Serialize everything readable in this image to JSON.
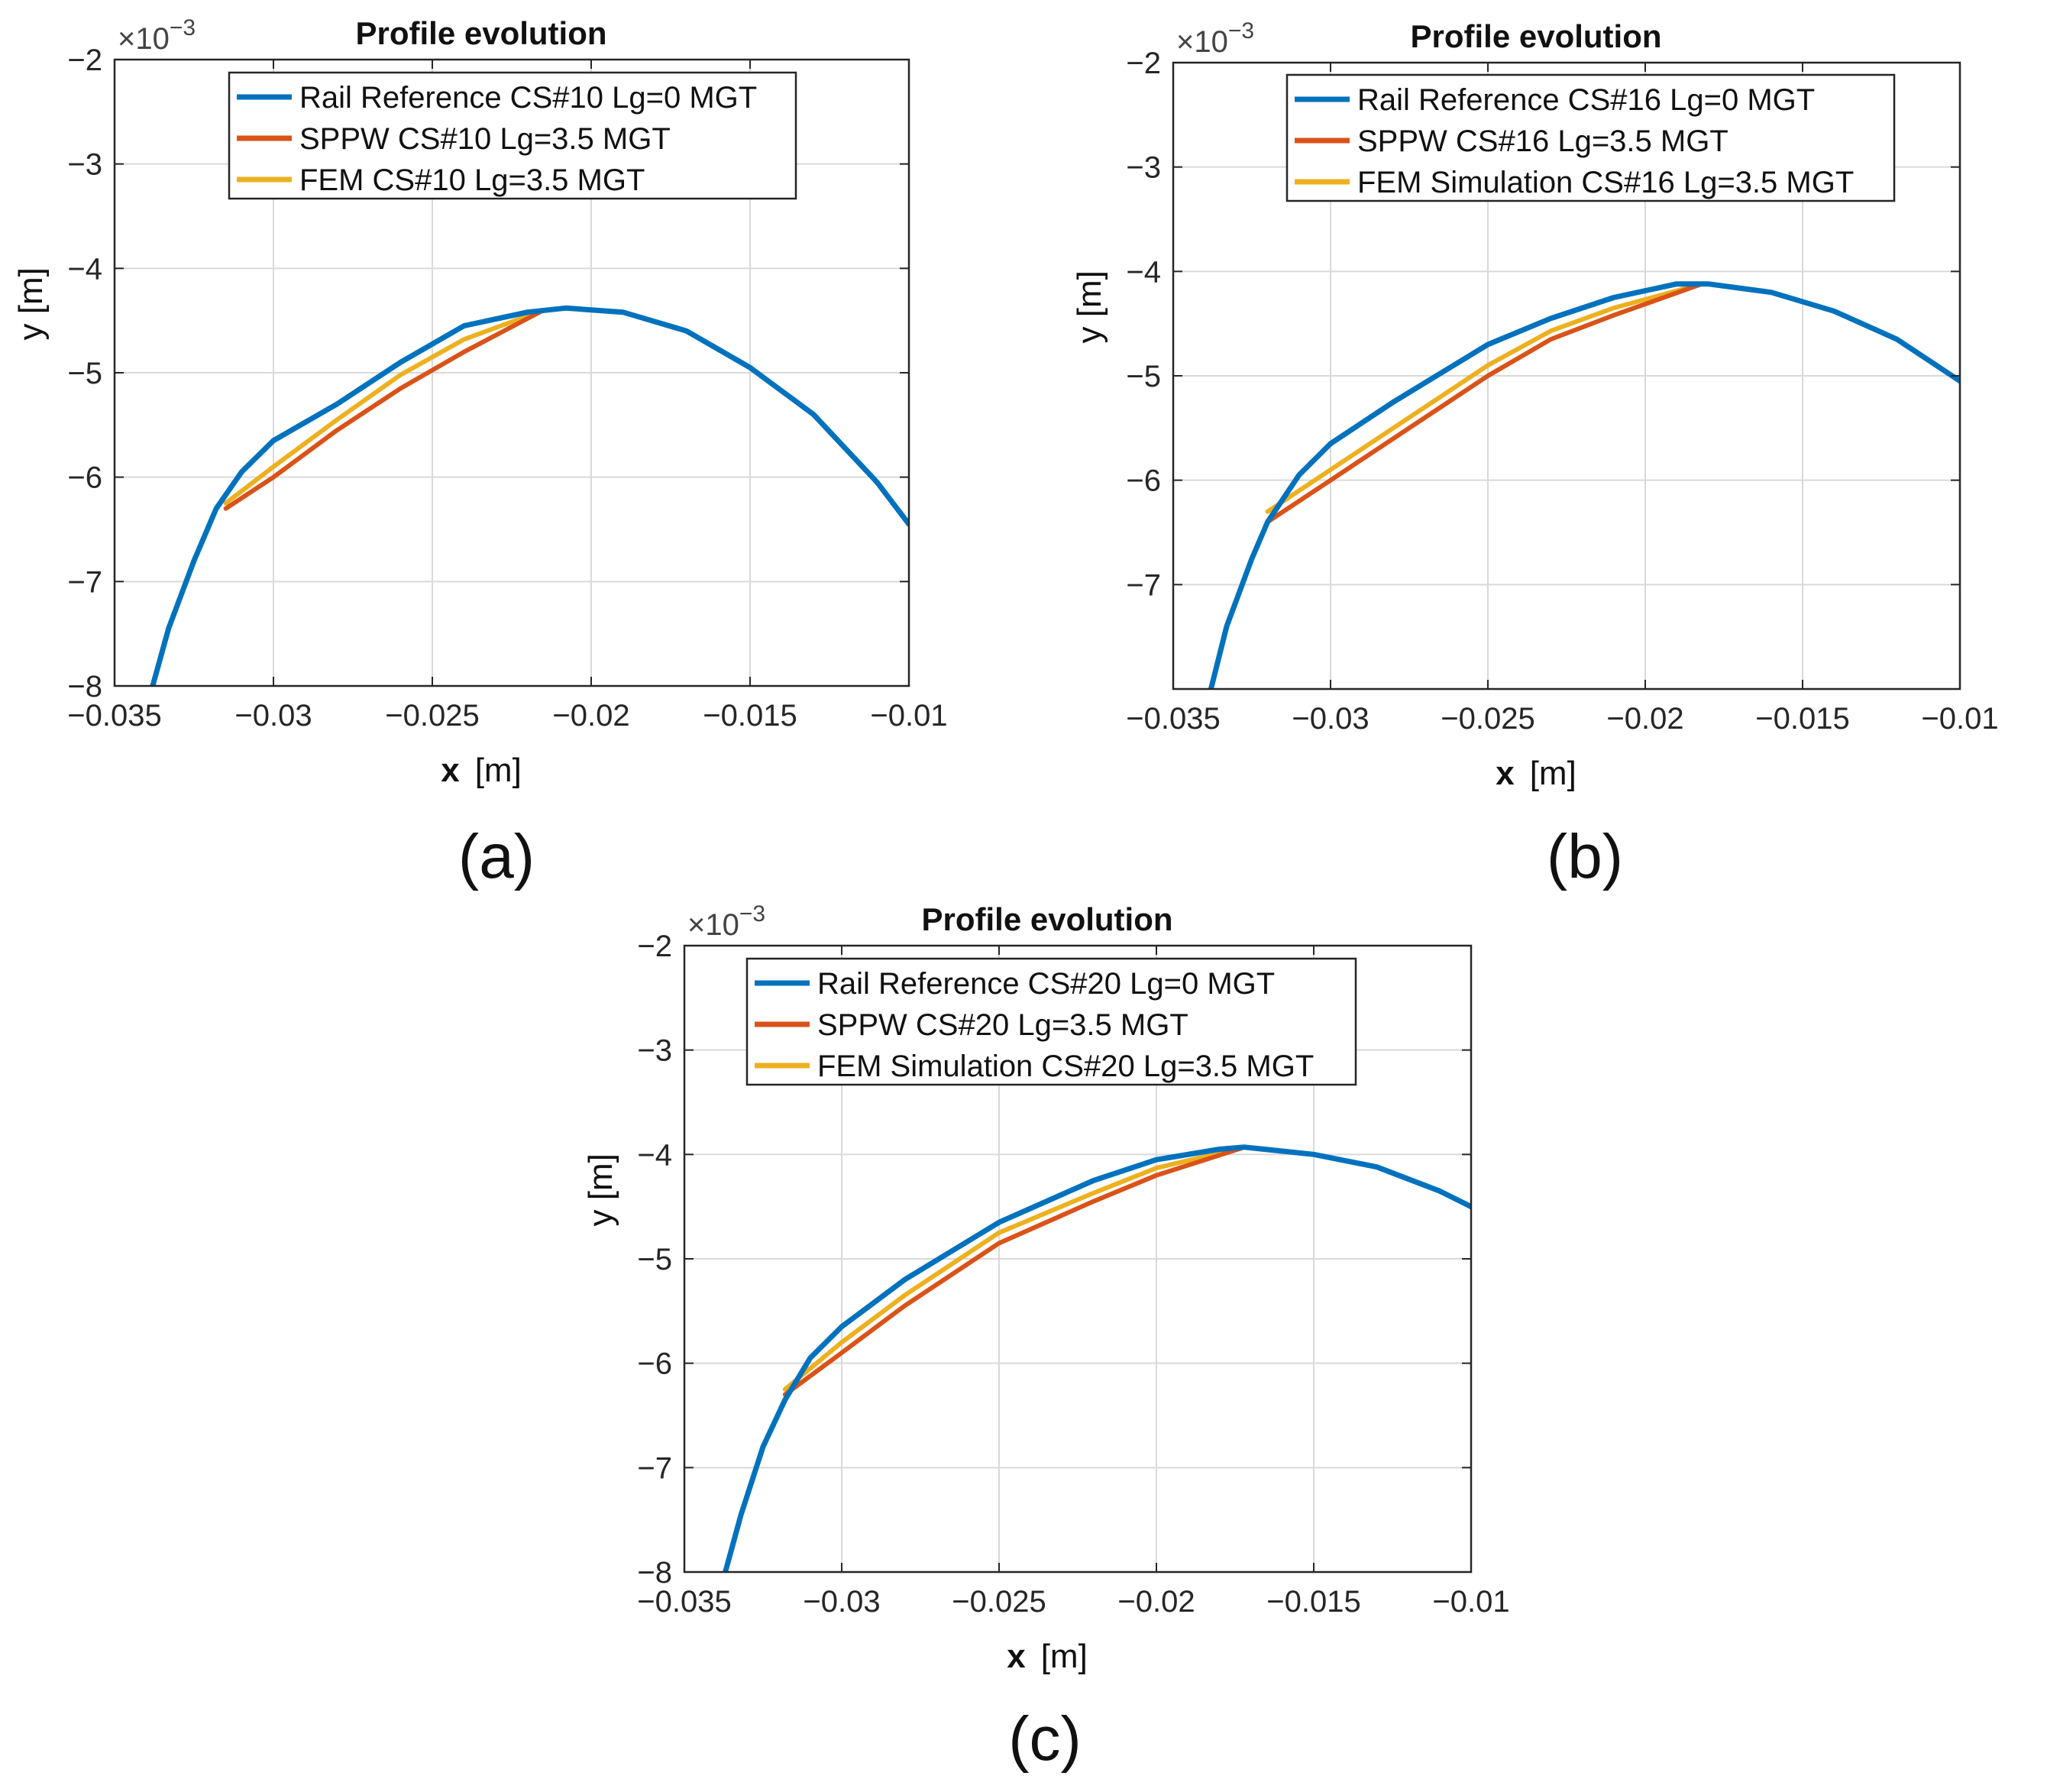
{
  "figure": {
    "panels": [
      {
        "id": "a",
        "caption": "(a)",
        "multiplier": "×10",
        "multiplier_exp": "−3"
      },
      {
        "id": "b",
        "caption": "(b)",
        "multiplier": "×10",
        "multiplier_exp": "−3"
      },
      {
        "id": "c",
        "caption": "(c)",
        "multiplier": "×10",
        "multiplier_exp": "−3"
      }
    ]
  },
  "colors": {
    "reference": "#0072BD",
    "sppw": "#D95319",
    "fem": "#EDB120",
    "grid": "#d9d9d9",
    "axis": "#262626"
  },
  "chart_data": [
    {
      "type": "line",
      "title": "Profile evolution",
      "xlabel": "x",
      "xunit": "[m]",
      "ylabel": "y [m]",
      "y_scale_note": "×10^-3",
      "xlim": [
        -0.035,
        -0.01
      ],
      "ylim": [
        -8,
        -2
      ],
      "xticks": [
        -0.035,
        -0.03,
        -0.025,
        -0.02,
        -0.015,
        -0.01
      ],
      "xtick_labels": [
        "−0.035",
        "−0.03",
        "−0.025",
        "−0.02",
        "−0.015",
        "−0.01"
      ],
      "yticks": [
        -8,
        -7,
        -6,
        -5,
        -4,
        -3,
        -2
      ],
      "ytick_labels": [
        "−8",
        "−7",
        "−6",
        "−5",
        "−4",
        "−3",
        "−2"
      ],
      "grid": true,
      "legend_position": "top-center",
      "series": [
        {
          "name": "Rail Reference CS#10 Lg=0 MGT",
          "color": "#0072BD",
          "x": [
            -0.0338,
            -0.0333,
            -0.0325,
            -0.0318,
            -0.031,
            -0.03,
            -0.028,
            -0.026,
            -0.024,
            -0.022,
            -0.0208,
            -0.019,
            -0.017,
            -0.015,
            -0.013,
            -0.011,
            -0.01
          ],
          "y": [
            -8.0,
            -7.45,
            -6.8,
            -6.3,
            -5.95,
            -5.65,
            -5.3,
            -4.9,
            -4.55,
            -4.42,
            -4.38,
            -4.42,
            -4.6,
            -4.95,
            -5.4,
            -6.05,
            -6.45
          ]
        },
        {
          "name": "SPPW CS#10 Lg=3.5 MGT",
          "color": "#D95319",
          "x": [
            -0.0315,
            -0.03,
            -0.028,
            -0.026,
            -0.024,
            -0.0215
          ],
          "y": [
            -6.3,
            -6.0,
            -5.55,
            -5.15,
            -4.8,
            -4.4
          ]
        },
        {
          "name": "FEM CS#10 Lg=3.5 MGT",
          "color": "#EDB120",
          "x": [
            -0.0315,
            -0.03,
            -0.028,
            -0.026,
            -0.024,
            -0.0215
          ],
          "y": [
            -6.25,
            -5.9,
            -5.45,
            -5.02,
            -4.68,
            -4.4
          ]
        }
      ]
    },
    {
      "type": "line",
      "title": "Profile evolution",
      "xlabel": "x",
      "xunit": "[m]",
      "ylabel": "y [m]",
      "y_scale_note": "×10^-3",
      "xlim": [
        -0.035,
        -0.01
      ],
      "ylim": [
        -8,
        -2
      ],
      "xticks": [
        -0.035,
        -0.03,
        -0.025,
        -0.02,
        -0.015,
        -0.01
      ],
      "xtick_labels": [
        "−0.035",
        "−0.03",
        "−0.025",
        "−0.02",
        "−0.015",
        "−0.01"
      ],
      "yticks": [
        -7,
        -6,
        -5,
        -4,
        -3,
        -2
      ],
      "ytick_labels": [
        "−7",
        "−6",
        "−5",
        "−4",
        "−3",
        "−2"
      ],
      "grid": true,
      "legend_position": "top-center",
      "series": [
        {
          "name": "Rail Reference CS#16 Lg=0 MGT",
          "color": "#0072BD",
          "x": [
            -0.0338,
            -0.0333,
            -0.0325,
            -0.032,
            -0.031,
            -0.03,
            -0.028,
            -0.025,
            -0.023,
            -0.021,
            -0.019,
            -0.018,
            -0.016,
            -0.014,
            -0.012,
            -0.01
          ],
          "y": [
            -8.0,
            -7.4,
            -6.75,
            -6.4,
            -5.95,
            -5.65,
            -5.25,
            -4.7,
            -4.45,
            -4.25,
            -4.12,
            -4.12,
            -4.2,
            -4.38,
            -4.65,
            -5.05
          ]
        },
        {
          "name": "SPPW CS#16 Lg=3.5 MGT",
          "color": "#D95319",
          "x": [
            -0.032,
            -0.03,
            -0.028,
            -0.025,
            -0.023,
            -0.021,
            -0.0182
          ],
          "y": [
            -6.4,
            -6.0,
            -5.6,
            -5.0,
            -4.65,
            -4.42,
            -4.12
          ]
        },
        {
          "name": "FEM Simulation CS#16 Lg=3.5 MGT",
          "color": "#EDB120",
          "x": [
            -0.032,
            -0.03,
            -0.028,
            -0.025,
            -0.023,
            -0.021,
            -0.0182
          ],
          "y": [
            -6.3,
            -5.9,
            -5.5,
            -4.9,
            -4.57,
            -4.35,
            -4.12
          ]
        }
      ]
    },
    {
      "type": "line",
      "title": "Profile evolution",
      "xlabel": "x",
      "xunit": "[m]",
      "ylabel": "y [m]",
      "y_scale_note": "×10^-3",
      "xlim": [
        -0.035,
        -0.01
      ],
      "ylim": [
        -8,
        -2
      ],
      "xticks": [
        -0.035,
        -0.03,
        -0.025,
        -0.02,
        -0.015,
        -0.01
      ],
      "xtick_labels": [
        "−0.035",
        "−0.03",
        "−0.025",
        "−0.02",
        "−0.015",
        "−0.01"
      ],
      "yticks": [
        -8,
        -7,
        -6,
        -5,
        -4,
        -3,
        -2
      ],
      "ytick_labels": [
        "−8",
        "−7",
        "−6",
        "−5",
        "−4",
        "−3",
        "−2"
      ],
      "grid": true,
      "legend_position": "top-center",
      "series": [
        {
          "name": "Rail Reference CS#20 Lg=0 MGT",
          "color": "#0072BD",
          "x": [
            -0.0337,
            -0.0332,
            -0.0325,
            -0.0318,
            -0.031,
            -0.03,
            -0.028,
            -0.025,
            -0.022,
            -0.02,
            -0.018,
            -0.0172,
            -0.015,
            -0.013,
            -0.011,
            -0.01
          ],
          "y": [
            -8.0,
            -7.45,
            -6.8,
            -6.35,
            -5.95,
            -5.65,
            -5.2,
            -4.65,
            -4.25,
            -4.05,
            -3.95,
            -3.93,
            -4.0,
            -4.12,
            -4.35,
            -4.5
          ]
        },
        {
          "name": "SPPW CS#20 Lg=3.5 MGT",
          "color": "#D95319",
          "x": [
            -0.0318,
            -0.03,
            -0.028,
            -0.025,
            -0.022,
            -0.02,
            -0.0172
          ],
          "y": [
            -6.3,
            -5.9,
            -5.45,
            -4.85,
            -4.45,
            -4.2,
            -3.93
          ]
        },
        {
          "name": "FEM Simulation CS#20 Lg=3.5 MGT",
          "color": "#EDB120",
          "x": [
            -0.0318,
            -0.03,
            -0.028,
            -0.025,
            -0.022,
            -0.02,
            -0.0172
          ],
          "y": [
            -6.25,
            -5.8,
            -5.35,
            -4.75,
            -4.37,
            -4.13,
            -3.93
          ]
        }
      ]
    }
  ]
}
